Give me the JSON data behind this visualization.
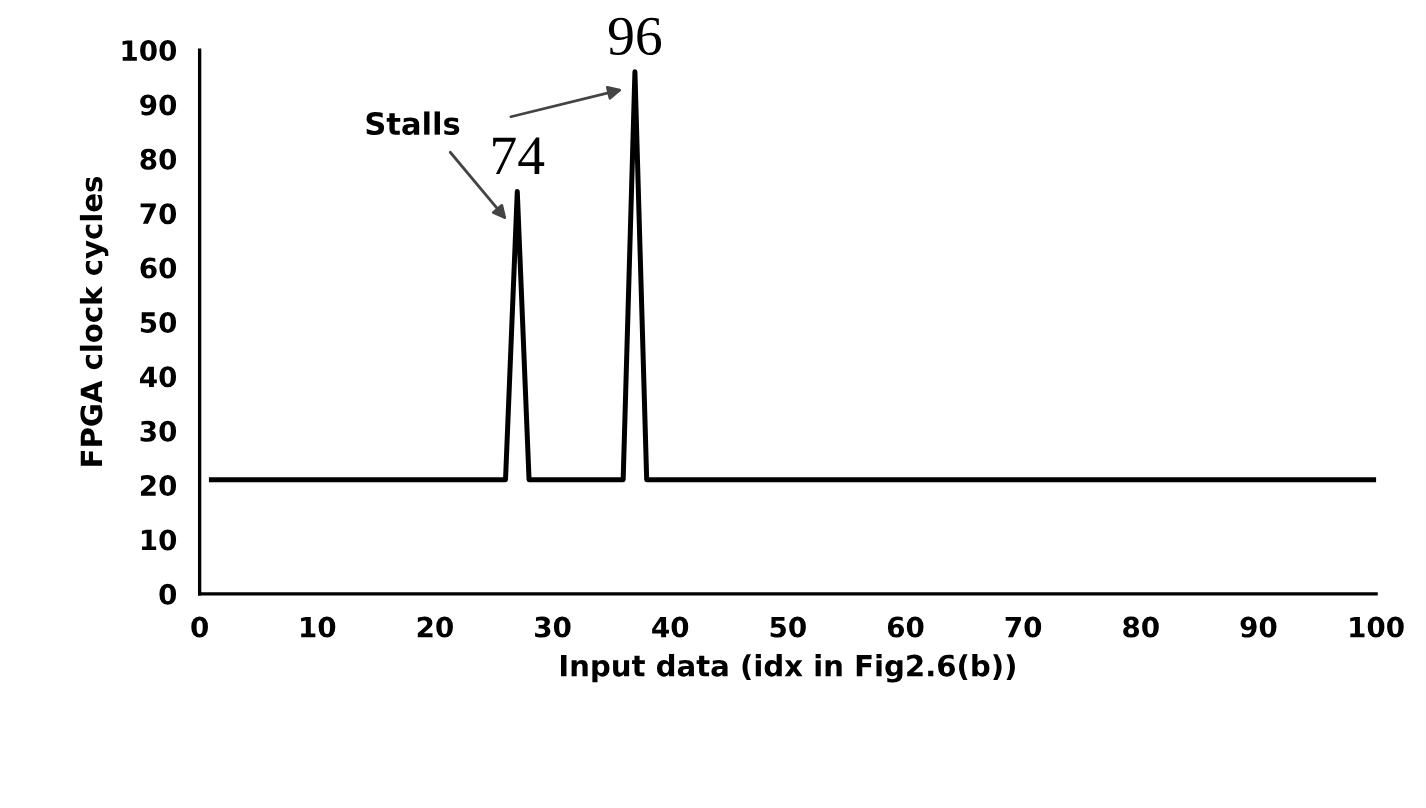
{
  "chart_data": {
    "type": "line",
    "xlabel": "Input data (idx in Fig2.6(b))",
    "ylabel": "FPGA clock cycles",
    "x": [
      1,
      26,
      27,
      28,
      36,
      37,
      38,
      100
    ],
    "series": [
      {
        "color": "#000000",
        "values": [
          21,
          21,
          74,
          21,
          21,
          96,
          21,
          21
        ]
      }
    ],
    "xlim": [
      0,
      100
    ],
    "xticks": [
      0,
      10,
      20,
      30,
      40,
      50,
      60,
      70,
      80,
      90,
      100
    ],
    "ylim": [
      0,
      100
    ],
    "yticks": [
      0,
      10,
      20,
      30,
      40,
      50,
      60,
      70,
      80,
      90,
      100
    ],
    "grid": false,
    "legend": false,
    "marker": "none",
    "line_style": "solid",
    "annotations": [
      "Stalls",
      {
        "text": "74",
        "x": 27,
        "y": 74
      },
      {
        "text": "96",
        "x": 37,
        "y": 96
      }
    ]
  }
}
